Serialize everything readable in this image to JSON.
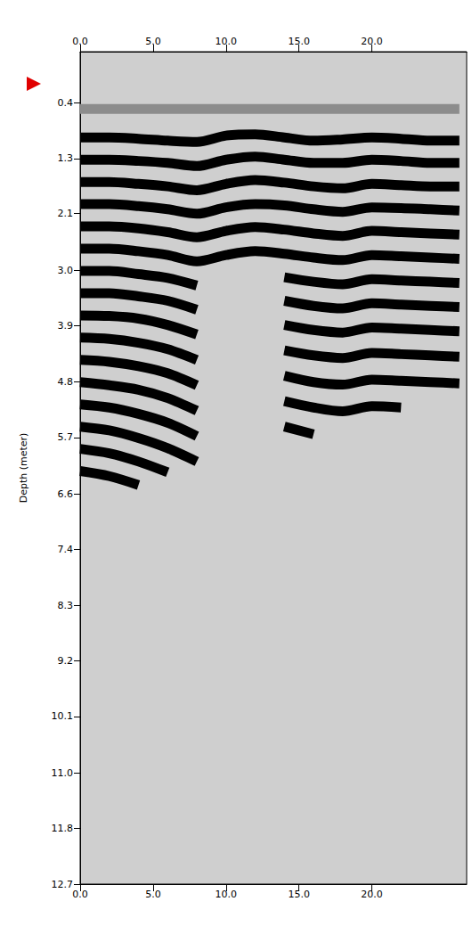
{
  "chart_data": {
    "type": "line",
    "y_label": "Depth (meter)",
    "xlim": [
      0,
      26.5
    ],
    "xticks": [
      {
        "value": 0,
        "label": "0.0"
      },
      {
        "value": 5,
        "label": "5.0"
      },
      {
        "value": 10,
        "label": "10.0"
      },
      {
        "value": 15,
        "label": "15.0"
      },
      {
        "value": 20,
        "label": "20.0"
      }
    ],
    "ylim": [
      -0.4,
      12.7
    ],
    "yticks": [
      {
        "value": 0.4,
        "label": "0.4"
      },
      {
        "value": 1.28,
        "label": "1.3"
      },
      {
        "value": 2.14,
        "label": "2.1"
      },
      {
        "value": 3.04,
        "label": "3.0"
      },
      {
        "value": 3.91,
        "label": "3.9"
      },
      {
        "value": 4.79,
        "label": "4.8"
      },
      {
        "value": 5.67,
        "label": "5.7"
      },
      {
        "value": 6.56,
        "label": "6.6"
      },
      {
        "value": 7.43,
        "label": "7.4"
      },
      {
        "value": 8.31,
        "label": "8.3"
      },
      {
        "value": 9.19,
        "label": "9.2"
      },
      {
        "value": 10.06,
        "label": "10.1"
      },
      {
        "value": 10.95,
        "label": "11.0"
      },
      {
        "value": 11.82,
        "label": "11.8"
      },
      {
        "value": 12.7,
        "label": "12.7"
      }
    ],
    "grid": false,
    "marker": "none",
    "line_style": "solid",
    "x": [
      0,
      2,
      4,
      6,
      8,
      10,
      12,
      14,
      16,
      18,
      20,
      22,
      24,
      26
    ],
    "series": [
      {
        "color": "#8c8c8c",
        "values": [
          0.5,
          0.5,
          0.5,
          0.5,
          0.5,
          0.5,
          0.5,
          0.5,
          0.5,
          0.5,
          0.5,
          0.5,
          0.5,
          0.5
        ]
      },
      {
        "color": "#000000",
        "values": [
          0.95,
          0.95,
          0.97,
          1.0,
          1.02,
          0.92,
          0.9,
          0.95,
          1.0,
          0.98,
          0.95,
          0.97,
          1.0,
          1.0
        ]
      },
      {
        "color": "#000000",
        "values": [
          1.3,
          1.3,
          1.32,
          1.35,
          1.4,
          1.3,
          1.25,
          1.3,
          1.35,
          1.35,
          1.3,
          1.32,
          1.35,
          1.35
        ]
      },
      {
        "color": "#000000",
        "values": [
          1.65,
          1.65,
          1.68,
          1.72,
          1.78,
          1.68,
          1.62,
          1.66,
          1.72,
          1.75,
          1.68,
          1.7,
          1.72,
          1.72
        ]
      },
      {
        "color": "#000000",
        "values": [
          2.0,
          2.0,
          2.03,
          2.08,
          2.15,
          2.05,
          2.0,
          2.02,
          2.08,
          2.12,
          2.05,
          2.06,
          2.08,
          2.1
        ]
      },
      {
        "color": "#000000",
        "values": [
          2.35,
          2.35,
          2.38,
          2.44,
          2.52,
          2.42,
          2.36,
          2.4,
          2.46,
          2.5,
          2.42,
          2.44,
          2.46,
          2.48
        ]
      },
      {
        "color": "#000000",
        "values": [
          2.7,
          2.7,
          2.74,
          2.8,
          2.9,
          2.8,
          2.74,
          2.78,
          2.84,
          2.88,
          2.8,
          2.82,
          2.84,
          2.86
        ]
      },
      {
        "color": "#000000",
        "values": [
          3.05,
          3.05,
          3.1,
          3.16,
          3.28,
          null,
          null,
          3.15,
          3.22,
          3.26,
          3.18,
          3.2,
          3.22,
          3.24
        ]
      },
      {
        "color": "#000000",
        "values": [
          3.4,
          3.4,
          3.45,
          3.52,
          3.66,
          null,
          null,
          3.52,
          3.6,
          3.64,
          3.56,
          3.58,
          3.6,
          3.62
        ]
      },
      {
        "color": "#000000",
        "values": [
          3.75,
          3.76,
          3.8,
          3.9,
          4.05,
          null,
          null,
          3.9,
          3.98,
          4.02,
          3.94,
          3.96,
          3.98,
          4.0
        ]
      },
      {
        "color": "#000000",
        "values": [
          4.1,
          4.12,
          4.18,
          4.28,
          4.45,
          null,
          null,
          4.3,
          4.38,
          4.42,
          4.34,
          4.36,
          4.38,
          4.4
        ]
      },
      {
        "color": "#000000",
        "values": [
          4.45,
          4.48,
          4.55,
          4.66,
          4.85,
          null,
          null,
          4.7,
          4.8,
          4.84,
          4.76,
          4.78,
          4.8,
          4.82
        ]
      },
      {
        "color": "#000000",
        "values": [
          4.8,
          4.85,
          4.92,
          5.05,
          5.25,
          null,
          null,
          5.1,
          5.2,
          5.26,
          5.18,
          5.2,
          null,
          null
        ]
      },
      {
        "color": "#000000",
        "values": [
          5.15,
          5.2,
          5.3,
          5.44,
          5.65,
          null,
          null,
          5.5,
          5.62,
          null,
          null,
          null,
          null,
          null
        ]
      },
      {
        "color": "#000000",
        "values": [
          5.5,
          5.56,
          5.68,
          5.84,
          6.05,
          null,
          null,
          null,
          null,
          null,
          null,
          null,
          null,
          null
        ]
      },
      {
        "color": "#000000",
        "values": [
          5.85,
          5.92,
          6.05,
          6.22,
          null,
          null,
          null,
          null,
          null,
          null,
          null,
          null,
          null,
          null
        ]
      },
      {
        "color": "#000000",
        "values": [
          6.2,
          6.28,
          6.42,
          null,
          null,
          null,
          null,
          null,
          null,
          null,
          null,
          null,
          null,
          null
        ]
      }
    ]
  }
}
